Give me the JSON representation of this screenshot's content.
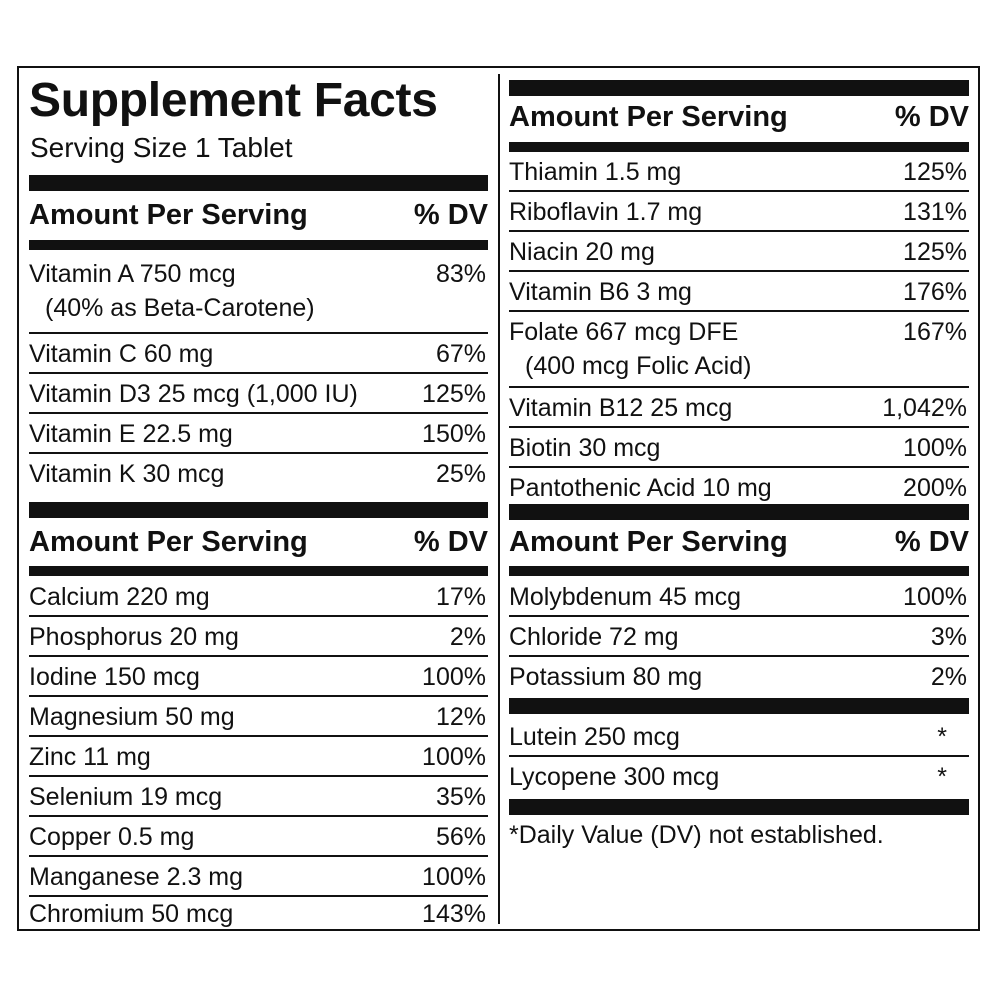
{
  "title": "Supplement Facts",
  "serving_size": "Serving Size 1 Tablet",
  "header": {
    "amount": "Amount Per Serving",
    "dv": "% DV"
  },
  "left": {
    "vitamins": [
      {
        "name": "Vitamin A 750 mcg",
        "sub": "(40% as Beta-Carotene)",
        "dv": "83%"
      },
      {
        "name": "Vitamin C 60 mg",
        "dv": "67%"
      },
      {
        "name": "Vitamin D3 25 mcg (1,000 IU)",
        "dv": "125%"
      },
      {
        "name": "Vitamin E 22.5 mg",
        "dv": "150%"
      },
      {
        "name": "Vitamin K 30 mcg",
        "dv": "25%"
      }
    ],
    "minerals": [
      {
        "name": "Calcium 220 mg",
        "dv": "17%"
      },
      {
        "name": "Phosphorus 20 mg",
        "dv": "2%"
      },
      {
        "name": "Iodine 150 mcg",
        "dv": "100%"
      },
      {
        "name": "Magnesium 50 mg",
        "dv": "12%"
      },
      {
        "name": "Zinc 11 mg",
        "dv": "100%"
      },
      {
        "name": "Selenium 19 mcg",
        "dv": "35%"
      },
      {
        "name": "Copper 0.5 mg",
        "dv": "56%"
      },
      {
        "name": "Manganese 2.3 mg",
        "dv": "100%"
      },
      {
        "name": "Chromium 50 mcg",
        "dv": "143%"
      }
    ]
  },
  "right": {
    "bvitamins": [
      {
        "name": "Thiamin 1.5 mg",
        "dv": "125%"
      },
      {
        "name": "Riboflavin 1.7 mg",
        "dv": "131%"
      },
      {
        "name": "Niacin 20 mg",
        "dv": "125%"
      },
      {
        "name": "Vitamin B6 3 mg",
        "dv": "176%"
      },
      {
        "name": "Folate 667 mcg DFE",
        "sub": "(400 mcg Folic Acid)",
        "dv": "167%"
      },
      {
        "name": "Vitamin B12 25 mcg",
        "dv": "1,042%"
      },
      {
        "name": "Biotin 30 mcg",
        "dv": "100%"
      },
      {
        "name": "Pantothenic Acid 10 mg",
        "dv": "200%"
      }
    ],
    "minerals": [
      {
        "name": "Molybdenum 45 mcg",
        "dv": "100%"
      },
      {
        "name": "Chloride 72 mg",
        "dv": "3%"
      },
      {
        "name": "Potassium 80 mg",
        "dv": "2%"
      }
    ],
    "others": [
      {
        "name": "Lutein 250 mcg",
        "dv": "*"
      },
      {
        "name": "Lycopene 300 mcg",
        "dv": "*"
      }
    ]
  },
  "footnote": "*Daily Value (DV) not established."
}
